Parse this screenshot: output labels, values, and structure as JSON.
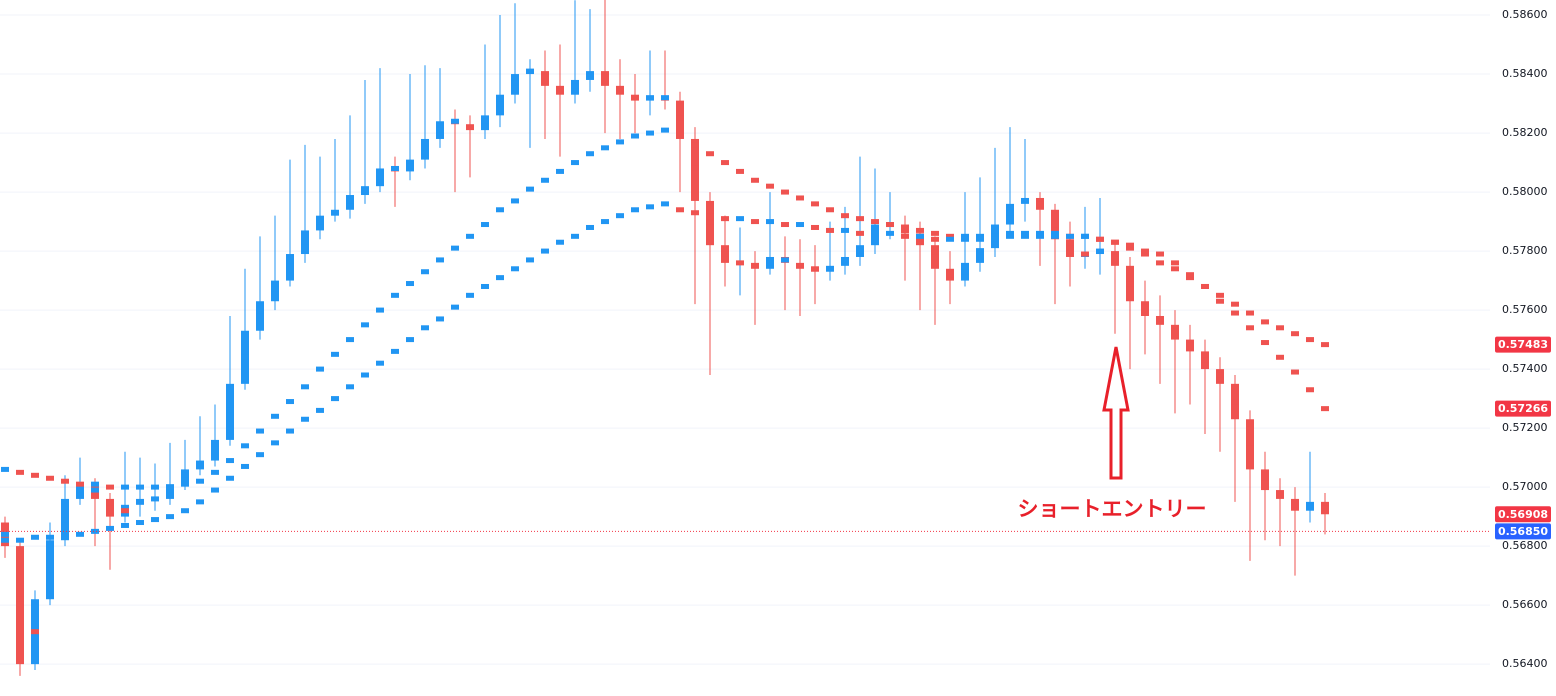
{
  "chart_data": {
    "type": "candlestick",
    "ylim": [
      0.56292,
      0.58651
    ],
    "yticks": [
      {
        "value": 0.564,
        "label": "0.56400"
      },
      {
        "value": 0.566,
        "label": "0.56600"
      },
      {
        "value": 0.568,
        "label": "0.56800"
      },
      {
        "value": 0.57,
        "label": "0.57000"
      },
      {
        "value": 0.572,
        "label": "0.57200"
      },
      {
        "value": 0.574,
        "label": "0.57400"
      },
      {
        "value": 0.576,
        "label": "0.57600"
      },
      {
        "value": 0.578,
        "label": "0.57800"
      },
      {
        "value": 0.58,
        "label": "0.58000"
      },
      {
        "value": 0.582,
        "label": "0.58200"
      },
      {
        "value": 0.584,
        "label": "0.58400"
      },
      {
        "value": 0.586,
        "label": "0.58600"
      }
    ],
    "grid": true,
    "up_color": "#2196f3",
    "down_color": "#ef5350",
    "series": [
      {
        "ohlc": [
          [
            0.5688,
            0.569,
            0.5676,
            0.568
          ],
          [
            0.568,
            0.5682,
            0.5636,
            0.564
          ],
          [
            0.564,
            0.5665,
            0.5638,
            0.5662
          ],
          [
            0.5662,
            0.5688,
            0.566,
            0.5682
          ],
          [
            0.5682,
            0.5704,
            0.568,
            0.5696
          ],
          [
            0.5696,
            0.571,
            0.5694,
            0.5701
          ],
          [
            0.5701,
            0.5703,
            0.568,
            0.5696
          ],
          [
            0.5696,
            0.5698,
            0.5672,
            0.569
          ],
          [
            0.569,
            0.5712,
            0.5688,
            0.5694
          ],
          [
            0.5694,
            0.571,
            0.569,
            0.5696
          ],
          [
            0.5696,
            0.5708,
            0.5692,
            0.5696
          ],
          [
            0.5696,
            0.5715,
            0.5694,
            0.5701
          ],
          [
            0.5701,
            0.5716,
            0.5699,
            0.5706
          ],
          [
            0.5706,
            0.5724,
            0.5704,
            0.5709
          ],
          [
            0.5709,
            0.5728,
            0.5707,
            0.5716
          ],
          [
            0.5716,
            0.5758,
            0.5714,
            0.5735
          ],
          [
            0.5735,
            0.5774,
            0.5733,
            0.5753
          ],
          [
            0.5753,
            0.5785,
            0.575,
            0.5763
          ],
          [
            0.5763,
            0.5792,
            0.576,
            0.577
          ],
          [
            0.577,
            0.5811,
            0.5768,
            0.5779
          ],
          [
            0.5779,
            0.5816,
            0.5776,
            0.5787
          ],
          [
            0.5787,
            0.5812,
            0.5784,
            0.5792
          ],
          [
            0.5792,
            0.5818,
            0.579,
            0.5794
          ],
          [
            0.5794,
            0.5826,
            0.5791,
            0.5799
          ],
          [
            0.5799,
            0.5838,
            0.5796,
            0.5802
          ],
          [
            0.5802,
            0.5842,
            0.58,
            0.5808
          ],
          [
            0.5808,
            0.5812,
            0.5795,
            0.5807
          ],
          [
            0.5807,
            0.584,
            0.5804,
            0.5811
          ],
          [
            0.5811,
            0.5843,
            0.5808,
            0.5818
          ],
          [
            0.5818,
            0.5842,
            0.5815,
            0.5824
          ],
          [
            0.5824,
            0.5828,
            0.58,
            0.5823
          ],
          [
            0.5823,
            0.5826,
            0.5805,
            0.5821
          ],
          [
            0.5821,
            0.585,
            0.5818,
            0.5826
          ],
          [
            0.5826,
            0.586,
            0.5822,
            0.5833
          ],
          [
            0.5833,
            0.5864,
            0.583,
            0.584
          ],
          [
            0.584,
            0.5845,
            0.5815,
            0.5841
          ],
          [
            0.5841,
            0.5848,
            0.5818,
            0.5836
          ],
          [
            0.5836,
            0.585,
            0.5812,
            0.5833
          ],
          [
            0.5833,
            0.5865,
            0.583,
            0.5838
          ],
          [
            0.5838,
            0.5862,
            0.5834,
            0.5841
          ],
          [
            0.5841,
            0.5866,
            0.582,
            0.5836
          ],
          [
            0.5836,
            0.5845,
            0.5818,
            0.5833
          ],
          [
            0.5833,
            0.584,
            0.582,
            0.5831
          ],
          [
            0.5831,
            0.5848,
            0.5826,
            0.5832
          ],
          [
            0.5832,
            0.5848,
            0.5828,
            0.5831
          ],
          [
            0.5831,
            0.5834,
            0.58,
            0.5818
          ],
          [
            0.5818,
            0.5822,
            0.5762,
            0.5797
          ],
          [
            0.5797,
            0.58,
            0.5738,
            0.5782
          ],
          [
            0.5782,
            0.5792,
            0.5768,
            0.5776
          ],
          [
            0.5776,
            0.5788,
            0.5765,
            0.5776
          ],
          [
            0.5776,
            0.578,
            0.5755,
            0.5774
          ],
          [
            0.5774,
            0.58,
            0.5772,
            0.5778
          ],
          [
            0.5778,
            0.5785,
            0.576,
            0.5776
          ],
          [
            0.5776,
            0.5784,
            0.5758,
            0.5774
          ],
          [
            0.5774,
            0.5782,
            0.5762,
            0.5773
          ],
          [
            0.5773,
            0.579,
            0.577,
            0.5775
          ],
          [
            0.5775,
            0.5795,
            0.5772,
            0.5778
          ],
          [
            0.5778,
            0.5812,
            0.5775,
            0.5782
          ],
          [
            0.5782,
            0.5808,
            0.5779,
            0.5789
          ],
          [
            0.5789,
            0.58,
            0.5784,
            0.5789
          ],
          [
            0.5789,
            0.5792,
            0.577,
            0.5786
          ],
          [
            0.5786,
            0.579,
            0.576,
            0.5782
          ],
          [
            0.5782,
            0.5785,
            0.5755,
            0.5774
          ],
          [
            0.5774,
            0.578,
            0.5762,
            0.577
          ],
          [
            0.577,
            0.58,
            0.5768,
            0.5776
          ],
          [
            0.5776,
            0.5805,
            0.5773,
            0.5781
          ],
          [
            0.5781,
            0.5815,
            0.5778,
            0.5789
          ],
          [
            0.5789,
            0.5822,
            0.5786,
            0.5796
          ],
          [
            0.5796,
            0.5818,
            0.579,
            0.5798
          ],
          [
            0.5798,
            0.58,
            0.5775,
            0.5794
          ],
          [
            0.5794,
            0.5796,
            0.5762,
            0.5784
          ],
          [
            0.5784,
            0.579,
            0.5768,
            0.5778
          ],
          [
            0.5778,
            0.5795,
            0.5774,
            0.5779
          ],
          [
            0.5779,
            0.5798,
            0.5772,
            0.578
          ],
          [
            0.578,
            0.5783,
            0.5752,
            0.5775
          ],
          [
            0.5775,
            0.5778,
            0.574,
            0.5763
          ],
          [
            0.5763,
            0.577,
            0.5745,
            0.5758
          ],
          [
            0.5758,
            0.5765,
            0.5735,
            0.5755
          ],
          [
            0.5755,
            0.576,
            0.5725,
            0.575
          ],
          [
            0.575,
            0.5755,
            0.5728,
            0.5746
          ],
          [
            0.5746,
            0.575,
            0.5718,
            0.574
          ],
          [
            0.574,
            0.5744,
            0.5712,
            0.5735
          ],
          [
            0.5735,
            0.5738,
            0.5695,
            0.5723
          ],
          [
            0.5723,
            0.5726,
            0.5675,
            0.5706
          ],
          [
            0.5706,
            0.5712,
            0.5682,
            0.5699
          ],
          [
            0.5699,
            0.5703,
            0.568,
            0.5696
          ],
          [
            0.5696,
            0.57,
            0.567,
            0.5692
          ],
          [
            0.5692,
            0.5712,
            0.5688,
            0.5695
          ],
          [
            0.5695,
            0.5698,
            0.5684,
            0.56908
          ]
        ]
      }
    ],
    "lines": [
      {
        "values": [
          0.5684,
          0.5662,
          0.5651,
          0.5672,
          0.5689,
          0.5699,
          0.5699,
          0.5693,
          0.5692,
          0.5695,
          0.5696,
          0.5699,
          0.5704,
          0.5708,
          0.5713,
          0.5726,
          0.5744,
          0.5758,
          0.5767,
          0.5775,
          0.5783,
          0.579,
          0.5793,
          0.5797,
          0.5801,
          0.5805,
          0.5808,
          0.5809,
          0.5815,
          0.5821,
          0.5824,
          0.5822,
          0.5824,
          0.583,
          0.5837,
          0.5841,
          0.5839,
          0.5835,
          0.5836,
          0.584,
          0.5839,
          0.5835,
          0.5832,
          0.5832,
          0.5832,
          0.5825,
          0.5808,
          0.579,
          0.5779,
          0.5776,
          0.5775,
          0.5776,
          0.5777,
          0.5775,
          0.5774,
          0.5774,
          0.5777,
          0.578,
          0.5786,
          0.5789,
          0.5788,
          0.5784,
          0.5778,
          0.5772,
          0.5773,
          0.5779,
          0.5785,
          0.5793,
          0.5797,
          0.5796,
          0.5789,
          0.5781,
          0.5779,
          0.578,
          0.5778,
          0.5769,
          0.5761,
          0.5757,
          0.5753,
          0.5748,
          0.5743,
          0.5738,
          0.5729,
          0.5715,
          0.5703,
          0.5698,
          0.5694,
          0.5694,
          0.5693
        ]
      },
      {
        "values": [
          0.5706,
          0.5705,
          0.5704,
          0.5703,
          0.5702,
          0.5701,
          0.5701,
          0.57,
          0.57,
          0.57,
          0.57,
          0.57,
          0.5701,
          0.5702,
          0.5705,
          0.5709,
          0.5714,
          0.5719,
          0.5724,
          0.5729,
          0.5734,
          0.574,
          0.5745,
          0.575,
          0.5755,
          0.576,
          0.5765,
          0.5769,
          0.5773,
          0.5777,
          0.5781,
          0.5785,
          0.5789,
          0.5794,
          0.5797,
          0.5801,
          0.5804,
          0.5807,
          0.581,
          0.5813,
          0.5815,
          0.5817,
          0.5819,
          0.582,
          0.5821,
          0.5819,
          0.5816,
          0.5813,
          0.581,
          0.5807,
          0.5804,
          0.5802,
          0.58,
          0.5798,
          0.5796,
          0.5794,
          0.5792,
          0.5791,
          0.579,
          0.5789,
          0.5788,
          0.5787,
          0.5786,
          0.5785,
          0.5785,
          0.5785,
          0.5785,
          0.5786,
          0.5786,
          0.5786,
          0.5786,
          0.5785,
          0.5785,
          0.5784,
          0.5783,
          0.5781,
          0.5779,
          0.5776,
          0.5774,
          0.5771,
          0.5768,
          0.5765,
          0.5762,
          0.5759,
          0.5756,
          0.5754,
          0.5752,
          0.575,
          0.57483
        ]
      },
      {
        "values": [
          0.5682,
          0.5682,
          0.5683,
          0.5683,
          0.5684,
          0.5684,
          0.5685,
          0.5686,
          0.5687,
          0.5688,
          0.5689,
          0.569,
          0.5692,
          0.5695,
          0.5699,
          0.5703,
          0.5707,
          0.5711,
          0.5715,
          0.5719,
          0.5723,
          0.5726,
          0.573,
          0.5734,
          0.5738,
          0.5742,
          0.5746,
          0.575,
          0.5754,
          0.5757,
          0.5761,
          0.5765,
          0.5768,
          0.5771,
          0.5774,
          0.5777,
          0.578,
          0.5783,
          0.5785,
          0.5788,
          0.579,
          0.5792,
          0.5794,
          0.5795,
          0.5796,
          0.5794,
          0.5793,
          0.5792,
          0.5791,
          0.5791,
          0.579,
          0.579,
          0.5789,
          0.5789,
          0.5788,
          0.5787,
          0.5787,
          0.5786,
          0.5786,
          0.5786,
          0.5785,
          0.5785,
          0.5784,
          0.5784,
          0.5784,
          0.5784,
          0.5784,
          0.5785,
          0.5785,
          0.5785,
          0.5785,
          0.5785,
          0.5785,
          0.5784,
          0.5783,
          0.5782,
          0.578,
          0.5779,
          0.5776,
          0.5772,
          0.5768,
          0.5763,
          0.5759,
          0.5754,
          0.5749,
          0.5744,
          0.5739,
          0.5733,
          0.57266
        ]
      }
    ],
    "price_line": {
      "value": 0.5685,
      "label": "0.56850",
      "color": "#2962ff"
    },
    "price_tags": [
      {
        "value": 0.57483,
        "color": "#f23645"
      },
      {
        "value": 0.57266,
        "color": "#f23645"
      },
      {
        "value": 0.56908,
        "color": "#f23645"
      }
    ],
    "annotation": {
      "text": "ショートエントリー",
      "color": "#e8202a"
    }
  }
}
